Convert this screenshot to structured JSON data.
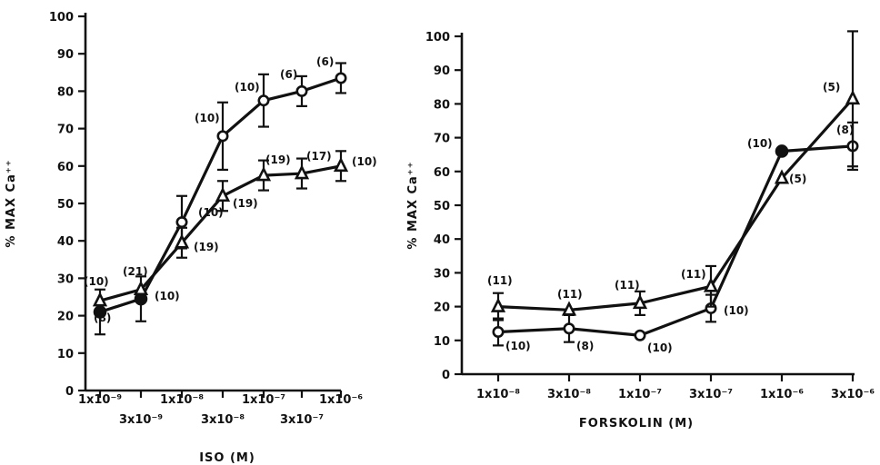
{
  "chart_data": [
    {
      "type": "line",
      "xlabel": "ISO (M)",
      "ylabel": "% MAX Ca⁺⁺",
      "ylim": [
        0,
        100
      ],
      "yticks": [
        "0",
        "10",
        "20",
        "30",
        "40",
        "50",
        "60",
        "70",
        "80",
        "90",
        "100"
      ],
      "x_tick_labels": [
        "1x10⁻⁹",
        "3x10⁻⁹",
        "1x10⁻⁸",
        "3x10⁻⁸",
        "1x10⁻⁷",
        "3x10⁻⁷",
        "1x10⁻⁶"
      ],
      "x": [
        1e-09,
        3e-09,
        1e-08,
        3e-08,
        1e-07,
        3e-07,
        1e-06
      ],
      "series": [
        {
          "marker": "circle",
          "values": [
            21,
            24.5,
            45,
            68,
            77.5,
            80,
            83.5
          ],
          "err": [
            6,
            6,
            7,
            9,
            7,
            4,
            4
          ],
          "n_labels": [
            "(8)",
            "",
            "(10)",
            "(10)",
            "(10)",
            "(6)",
            "(6)"
          ]
        },
        {
          "marker": "triangle",
          "values": [
            24,
            27,
            39.5,
            52,
            57.5,
            58,
            60
          ],
          "err": [
            0,
            0,
            4,
            4,
            4,
            4,
            4
          ],
          "n_labels": [
            "(10)",
            "(21)",
            "(19)",
            "(19)",
            "(19)",
            "(17)",
            "(10)"
          ]
        }
      ],
      "extra_labels": [
        "(10)"
      ]
    },
    {
      "type": "line",
      "xlabel": "FORSKOLIN (M)",
      "ylabel": "% MAX Ca⁺⁺",
      "ylim": [
        0,
        100
      ],
      "yticks": [
        "0",
        "10",
        "20",
        "30",
        "40",
        "50",
        "60",
        "70",
        "80",
        "90",
        "100"
      ],
      "x_tick_labels": [
        "1x10⁻⁸",
        "3x10⁻⁸",
        "1x10⁻⁷",
        "3x10⁻⁷",
        "1x10⁻⁶",
        "3x10⁻⁶"
      ],
      "x": [
        1e-08,
        3e-08,
        1e-07,
        3e-07,
        1e-06,
        3e-06
      ],
      "series": [
        {
          "marker": "circle",
          "values": [
            12.5,
            13.5,
            11.5,
            19.5,
            66,
            67.5
          ],
          "err": [
            4,
            4,
            0,
            4,
            0,
            7
          ],
          "n_labels": [
            "(10)",
            "(8)",
            "(10)",
            "(10)",
            "(10)",
            "(8)"
          ]
        },
        {
          "marker": "triangle",
          "values": [
            20,
            19,
            21,
            26,
            58,
            81.5
          ],
          "err": [
            4,
            0,
            3.5,
            6,
            0,
            20
          ],
          "n_labels": [
            "(11)",
            "(11)",
            "(11)",
            "(11)",
            "(5)",
            "(5)"
          ]
        }
      ]
    }
  ]
}
